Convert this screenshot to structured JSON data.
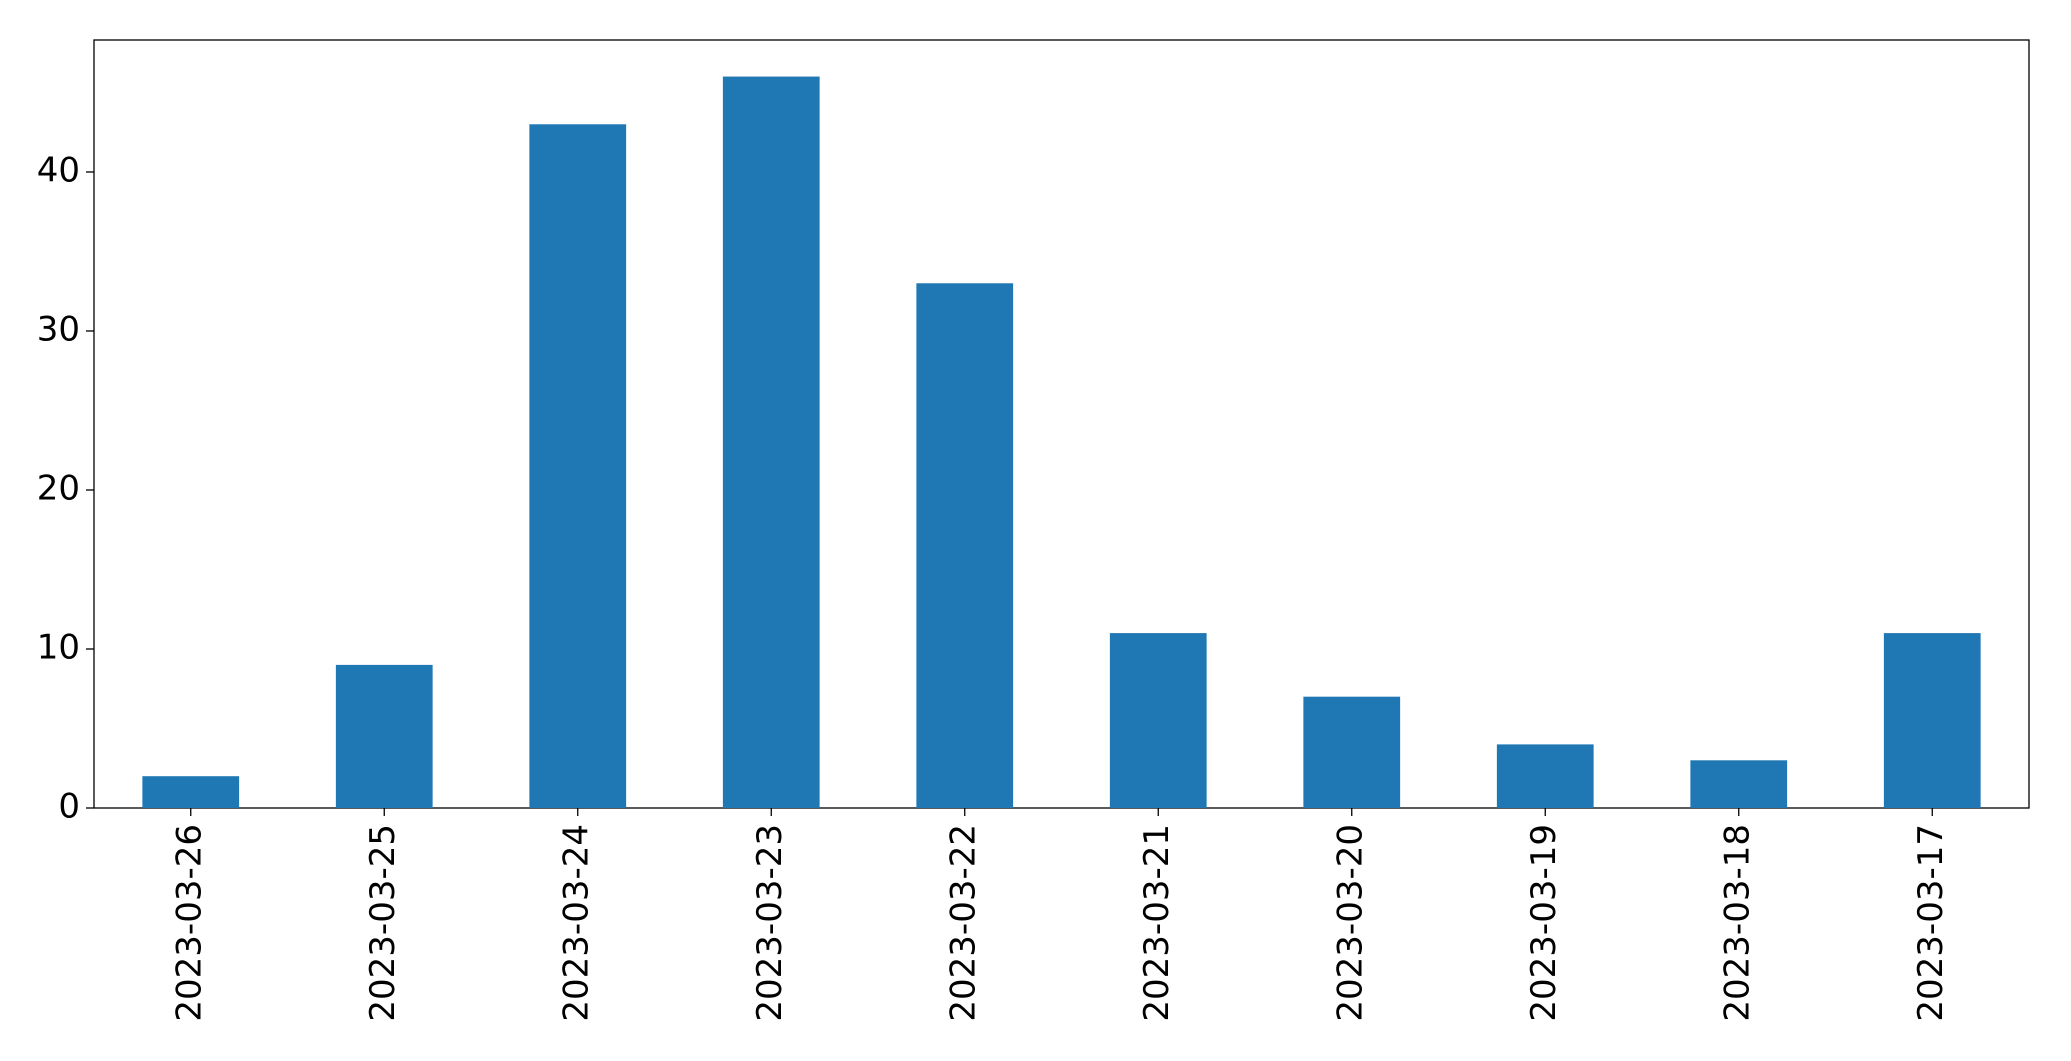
{
  "chart_data": {
    "type": "bar",
    "categories": [
      "2023-03-26",
      "2023-03-25",
      "2023-03-24",
      "2023-03-23",
      "2023-03-22",
      "2023-03-21",
      "2023-03-20",
      "2023-03-19",
      "2023-03-18",
      "2023-03-17"
    ],
    "values": [
      2,
      9,
      43,
      46,
      33,
      11,
      7,
      4,
      3,
      11
    ],
    "color": "#1f77b4",
    "ylim": [
      0,
      48.3
    ],
    "yticks": [
      0,
      10,
      20,
      30,
      40
    ],
    "grid": false
  }
}
